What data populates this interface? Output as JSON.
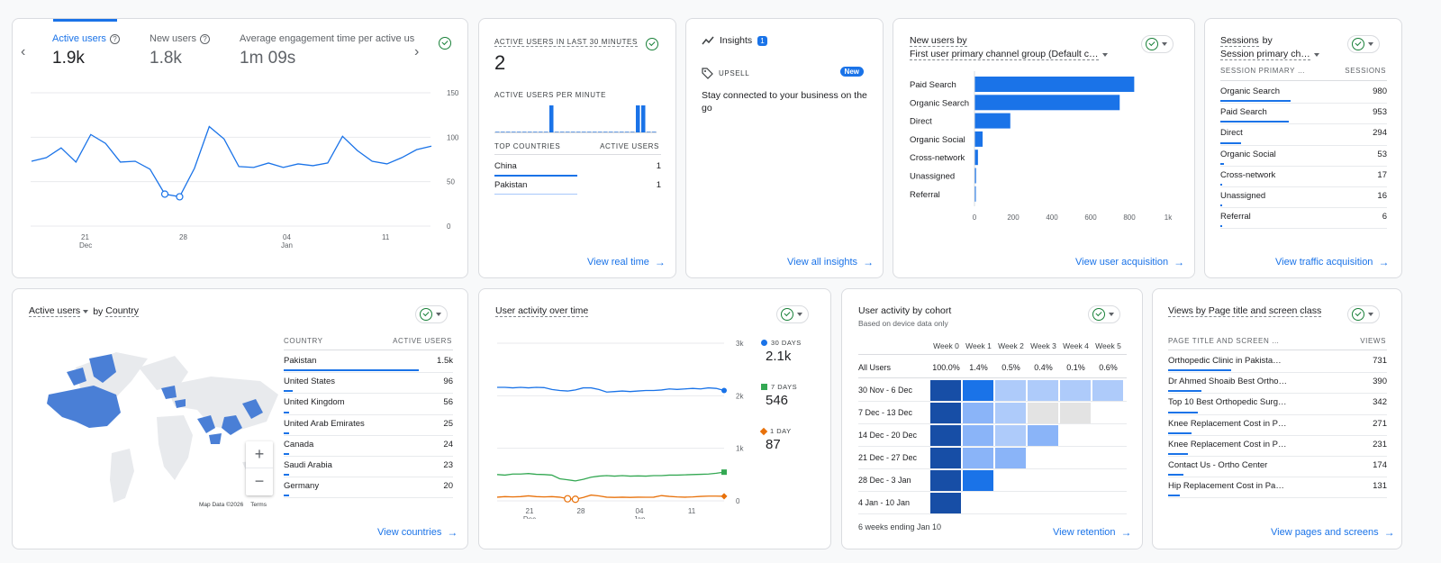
{
  "overview": {
    "tabs": [
      {
        "label": "Active users",
        "value": "1.9k"
      },
      {
        "label": "New users",
        "value": "1.8k"
      },
      {
        "label": "Average engagement time per active us",
        "value": "1m 09s"
      }
    ],
    "y_ticks": [
      "150",
      "100",
      "50",
      "0"
    ],
    "x_ticks": [
      {
        "day": "21",
        "month": "Dec"
      },
      {
        "day": "28",
        "month": ""
      },
      {
        "day": "04",
        "month": "Jan"
      },
      {
        "day": "11",
        "month": ""
      }
    ]
  },
  "realtime": {
    "title": "ACTIVE USERS IN LAST 30 MINUTES",
    "value": "2",
    "per_minute_label": "ACTIVE USERS PER MINUTE",
    "col_country": "TOP COUNTRIES",
    "col_users": "ACTIVE USERS",
    "rows": [
      {
        "country": "China",
        "users": "1"
      },
      {
        "country": "Pakistan",
        "users": "1"
      }
    ],
    "link": "View real time"
  },
  "insights": {
    "title": "Insights",
    "badge": "1",
    "tag": "UPSELL",
    "new_badge": "New",
    "text": "Stay connected to your business on the go",
    "link": "View all insights"
  },
  "acquisition": {
    "title": "New users by",
    "dimension": "First user primary channel group (Default c…",
    "x_ticks": [
      "0",
      "200",
      "400",
      "600",
      "800",
      "1k"
    ],
    "link": "View user acquisition"
  },
  "traffic": {
    "title": "Sessions",
    "title_by": "by",
    "dimension": "Session primary ch…",
    "col_dim": "SESSION PRIMARY …",
    "col_val": "SESSIONS",
    "rows": [
      {
        "label": "Organic Search",
        "value": "980"
      },
      {
        "label": "Paid Search",
        "value": "953"
      },
      {
        "label": "Direct",
        "value": "294"
      },
      {
        "label": "Organic Social",
        "value": "53"
      },
      {
        "label": "Cross-network",
        "value": "17"
      },
      {
        "label": "Unassigned",
        "value": "16"
      },
      {
        "label": "Referral",
        "value": "6"
      }
    ],
    "link": "View traffic acquisition"
  },
  "country": {
    "title": "Active users",
    "title_by": "by",
    "title_dim": "Country",
    "col_dim": "COUNTRY",
    "col_val": "ACTIVE USERS",
    "rows": [
      {
        "label": "Pakistan",
        "value": "1.5k"
      },
      {
        "label": "United States",
        "value": "96"
      },
      {
        "label": "United Kingdom",
        "value": "56"
      },
      {
        "label": "United Arab Emirates",
        "value": "25"
      },
      {
        "label": "Canada",
        "value": "24"
      },
      {
        "label": "Saudi Arabia",
        "value": "23"
      },
      {
        "label": "Germany",
        "value": "20"
      }
    ],
    "map_credit": "Map Data ©2026",
    "map_terms": "Terms",
    "zoom_in": "+",
    "zoom_out": "−",
    "link": "View countries"
  },
  "activity": {
    "title": "User activity over time",
    "y_ticks": [
      "3k",
      "2k",
      "1k",
      "0"
    ],
    "x_ticks": [
      {
        "day": "21",
        "month": "Dec"
      },
      {
        "day": "28",
        "month": ""
      },
      {
        "day": "04",
        "month": "Jan"
      },
      {
        "day": "11",
        "month": ""
      }
    ],
    "legend": [
      {
        "label": "30 DAYS",
        "value": "2.1k",
        "color": "#1a73e8",
        "shape": "circle"
      },
      {
        "label": "7 DAYS",
        "value": "546",
        "color": "#34a853",
        "shape": "square"
      },
      {
        "label": "1 DAY",
        "value": "87",
        "color": "#e8710a",
        "shape": "diamond"
      }
    ]
  },
  "cohort": {
    "title": "User activity by cohort",
    "subtitle": "Based on device data only",
    "weeks": [
      "Week 0",
      "Week 1",
      "Week 2",
      "Week 3",
      "Week 4",
      "Week 5"
    ],
    "all_label": "All Users",
    "all_values": [
      "100.0%",
      "1.4%",
      "0.5%",
      "0.4%",
      "0.1%",
      "0.6%"
    ],
    "rows": [
      "30 Nov - 6 Dec",
      "7 Dec - 13 Dec",
      "14 Dec - 20 Dec",
      "21 Dec - 27 Dec",
      "28 Dec - 3 Jan",
      "4 Jan - 10 Jan"
    ],
    "footer": "6 weeks ending Jan 10",
    "link": "View retention"
  },
  "pages": {
    "title": "Views by Page title and screen class",
    "col_dim": "PAGE TITLE AND SCREEN …",
    "col_val": "VIEWS",
    "rows": [
      {
        "label": "Orthopedic Clinic in Pakista…",
        "value": "731"
      },
      {
        "label": "Dr Ahmed Shoaib Best Ortho…",
        "value": "390"
      },
      {
        "label": "Top 10 Best Orthopedic Surg…",
        "value": "342"
      },
      {
        "label": "Knee Replacement Cost in P…",
        "value": "271"
      },
      {
        "label": "Knee Replacement Cost in P…",
        "value": "231"
      },
      {
        "label": "Contact Us - Ortho Center",
        "value": "174"
      },
      {
        "label": "Hip Replacement Cost in Pa…",
        "value": "131"
      }
    ],
    "link": "View pages and screens"
  },
  "chart_data": [
    {
      "type": "line",
      "series": [
        {
          "name": "Active users",
          "values": [
            73,
            77,
            88,
            72,
            103,
            93,
            72,
            73,
            64,
            36,
            33,
            65,
            112,
            98,
            67,
            66,
            71,
            66,
            70,
            68,
            71,
            101,
            85,
            73,
            70,
            77,
            86,
            90
          ]
        }
      ],
      "ylim": [
        0,
        150
      ]
    },
    {
      "type": "bar",
      "title": "ACTIVE USERS PER MINUTE",
      "values": [
        0,
        0,
        0,
        0,
        0,
        0,
        0,
        0,
        0,
        0,
        1,
        0,
        0,
        0,
        0,
        0,
        0,
        0,
        0,
        0,
        0,
        0,
        0,
        0,
        0,
        0,
        1,
        1,
        0,
        0
      ]
    },
    {
      "type": "bar",
      "title": "New users by First user primary channel group",
      "categories": [
        "Paid Search",
        "Organic Search",
        "Direct",
        "Organic Social",
        "Cross-network",
        "Unassigned",
        "Referral"
      ],
      "values": [
        825,
        750,
        185,
        42,
        18,
        8,
        5
      ],
      "xlim": [
        0,
        1000
      ]
    },
    {
      "type": "line",
      "title": "User activity over time",
      "series": [
        {
          "name": "30 DAYS",
          "values": [
            2160,
            2160,
            2150,
            2160,
            2150,
            2160,
            2155,
            2120,
            2100,
            2090,
            2110,
            2150,
            2150,
            2120,
            2070,
            2080,
            2090,
            2080,
            2090,
            2100,
            2100,
            2110,
            2130,
            2120,
            2130,
            2140,
            2130,
            2150,
            2140,
            2100
          ]
        },
        {
          "name": "7 DAYS",
          "values": [
            500,
            490,
            510,
            510,
            520,
            505,
            500,
            490,
            420,
            400,
            380,
            410,
            450,
            470,
            480,
            470,
            480,
            470,
            475,
            470,
            480,
            480,
            490,
            490,
            495,
            500,
            505,
            510,
            525,
            546
          ]
        },
        {
          "name": "1 DAY",
          "values": [
            70,
            80,
            75,
            80,
            95,
            80,
            75,
            80,
            70,
            40,
            30,
            65,
            110,
            95,
            70,
            65,
            70,
            65,
            70,
            68,
            70,
            100,
            85,
            75,
            70,
            75,
            85,
            90,
            90,
            87
          ]
        }
      ],
      "ylim": [
        0,
        3000
      ]
    },
    {
      "type": "heatmap",
      "title": "User activity by cohort",
      "rows": [
        "30 Nov - 6 Dec",
        "7 Dec - 13 Dec",
        "14 Dec - 20 Dec",
        "21 Dec - 27 Dec",
        "28 Dec - 3 Jan",
        "4 Jan - 10 Jan"
      ],
      "columns": [
        "Week 0",
        "Week 1",
        "Week 2",
        "Week 3",
        "Week 4",
        "Week 5"
      ],
      "values": [
        [
          4,
          3,
          1,
          1,
          1,
          1
        ],
        [
          4,
          2,
          1,
          0,
          0,
          null
        ],
        [
          4,
          2,
          1,
          2,
          null,
          null
        ],
        [
          4,
          2,
          2,
          null,
          null,
          null
        ],
        [
          4,
          3,
          null,
          null,
          null,
          null
        ],
        [
          4,
          null,
          null,
          null,
          null,
          null
        ]
      ]
    }
  ]
}
